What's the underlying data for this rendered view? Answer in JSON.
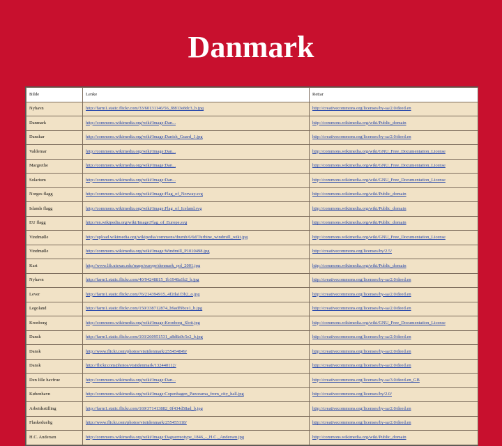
{
  "title": "Danmark",
  "table": {
    "headers": [
      "Bilde",
      "Lenke",
      "Rettar"
    ],
    "rows": [
      [
        "Nyhavn",
        "http://farm1.static.flickr.com/33/60131146/56_f8813e8dc3_b.jpg",
        "http://creativecommons.org/licenses/by-sa/2.0/deed.en"
      ],
      [
        "Danmark",
        "http://commons.wikimedia.org/wiki/Image:Dan...",
        "http://commons.wikimedia.org/wiki/Public_domain"
      ],
      [
        "Danskar",
        "http://commons.wikimedia.org/wiki/Image:Danish_Guard_1.jpg",
        "http://creativecommons.org/licenses/by-sa/2.0/deed.en"
      ],
      [
        "Valdemar",
        "http://commons.wikimedia.org/wiki/Image:Dan...",
        "http://commons.wikimedia.org/wiki/GNU_Free_Documentation_License"
      ],
      [
        "Margrethe",
        "http://commons.wikimedia.org/wiki/Image:Dan...",
        "http://commons.wikimedia.org/wiki/GNU_Free_Documentation_License"
      ],
      [
        "Solarium",
        "http://commons.wikimedia.org/wiki/Image:Dan...",
        "http://commons.wikimedia.org/wiki/GNU_Free_Documentation_License"
      ],
      [
        "Norges flagg",
        "http://commons.wikimedia.org/wiki/Image:Flag_of_Norway.svg",
        "http://commons.wikimedia.org/wiki/Public_domain"
      ],
      [
        "Islands flagg",
        "http://commons.wikimedia.org/wiki/Image:Flag_of_Iceland.svg",
        "http://commons.wikimedia.org/wiki/Public_domain"
      ],
      [
        "EU flagg",
        "http://en.wikipedia.org/wiki/Image:Flag_of_Europe.svg",
        "http://commons.wikimedia.org/wiki/Public_domain"
      ],
      [
        "Vindmølle",
        "http://upload.wikimedia.org/wikipedia/commons/thumb/6/6d/Turbine_windmill_wiki.jpg",
        "http://commons.wikimedia.org/wiki/GNU_Free_Documentation_License"
      ],
      [
        "Vindmølle",
        "http://commons.wikimedia.org/wiki/Image:Windmill_P1010498.jpg",
        "http://creativecommons.org/licenses/by/2.5/"
      ],
      [
        "Kart",
        "http://www.lib.utexas.edu/maps/europe/denmark_pol_2001.jpg",
        "http://commons.wikimedia.org/wiki/Public_domain"
      ],
      [
        "Nyhavn",
        "http://farm1.static.flickr.com/40/94248815_1b1948a1b2_b.jpg",
        "http://creativecommons.org/licenses/by-sa/2.0/deed.en"
      ],
      [
        "Lever",
        "http://farm1.static.flickr.com/76/214394915_4f2da1f3b2_o.jpg",
        "http://creativecommons.org/licenses/by-sa/2.0/deed.en"
      ],
      [
        "Legoland",
        "http://farm1.static.flickr.com/150/338712874_b9adf9bce1_b.jpg",
        "http://creativecommons.org/licenses/by-sa/2.0/deed.en"
      ],
      [
        "Kronborg",
        "http://commons.wikimedia.org/wiki/Image:Kronborg_Slott.jpg",
        "http://commons.wikimedia.org/wiki/GNU_Free_Documentation_License"
      ],
      [
        "Dansk",
        "http://farm1.static.flickr.com/103/260951531_a8d8a9c5e2_b.jpg",
        "http://creativecommons.org/licenses/by-sa/2.0/deed.en"
      ],
      [
        "Dansk",
        "http://www.flickr.com/photos/visitdenmark/255454849/",
        "http://creativecommons.org/licenses/by-sa/2.0/deed.en"
      ],
      [
        "Dansk",
        "http://flickr.com/photos/visitdenmark/132440112/",
        "http://creativecommons.org/licenses/by-sa/2.0/deed.en"
      ],
      [
        "Den lille havfrue",
        "http://commons.wikimedia.org/wiki/Image:Dan...",
        "http://creativecommons.org/licenses/by-sa/3.0/deed.en_GB"
      ],
      [
        "København",
        "http://commons.wikimedia.org/wiki/Image:Copenhagen_Panorama_from_city_hall.jpg",
        "http://creativecommons.org/licenses/by/2.0/"
      ],
      [
        "Arbeidsstilling",
        "http://farm1.static.flickr.com/169/371413882_0f434d58ad_b.jpg",
        "http://creativecommons.org/licenses/by-sa/2.0/deed.en"
      ],
      [
        "Flaskeduelig",
        "http://www.flickr.com/photos/visitdenmark/255455118/",
        "http://creativecommons.org/licenses/by-sa/2.0/deed.en"
      ],
      [
        "H.C. Andersen",
        "http://commons.wikimedia.org/wiki/Image:Daguerreotype_1846_-_H.C._Andersen.jpg",
        "http://commons.wikimedia.org/wiki/Public_domain"
      ]
    ]
  }
}
